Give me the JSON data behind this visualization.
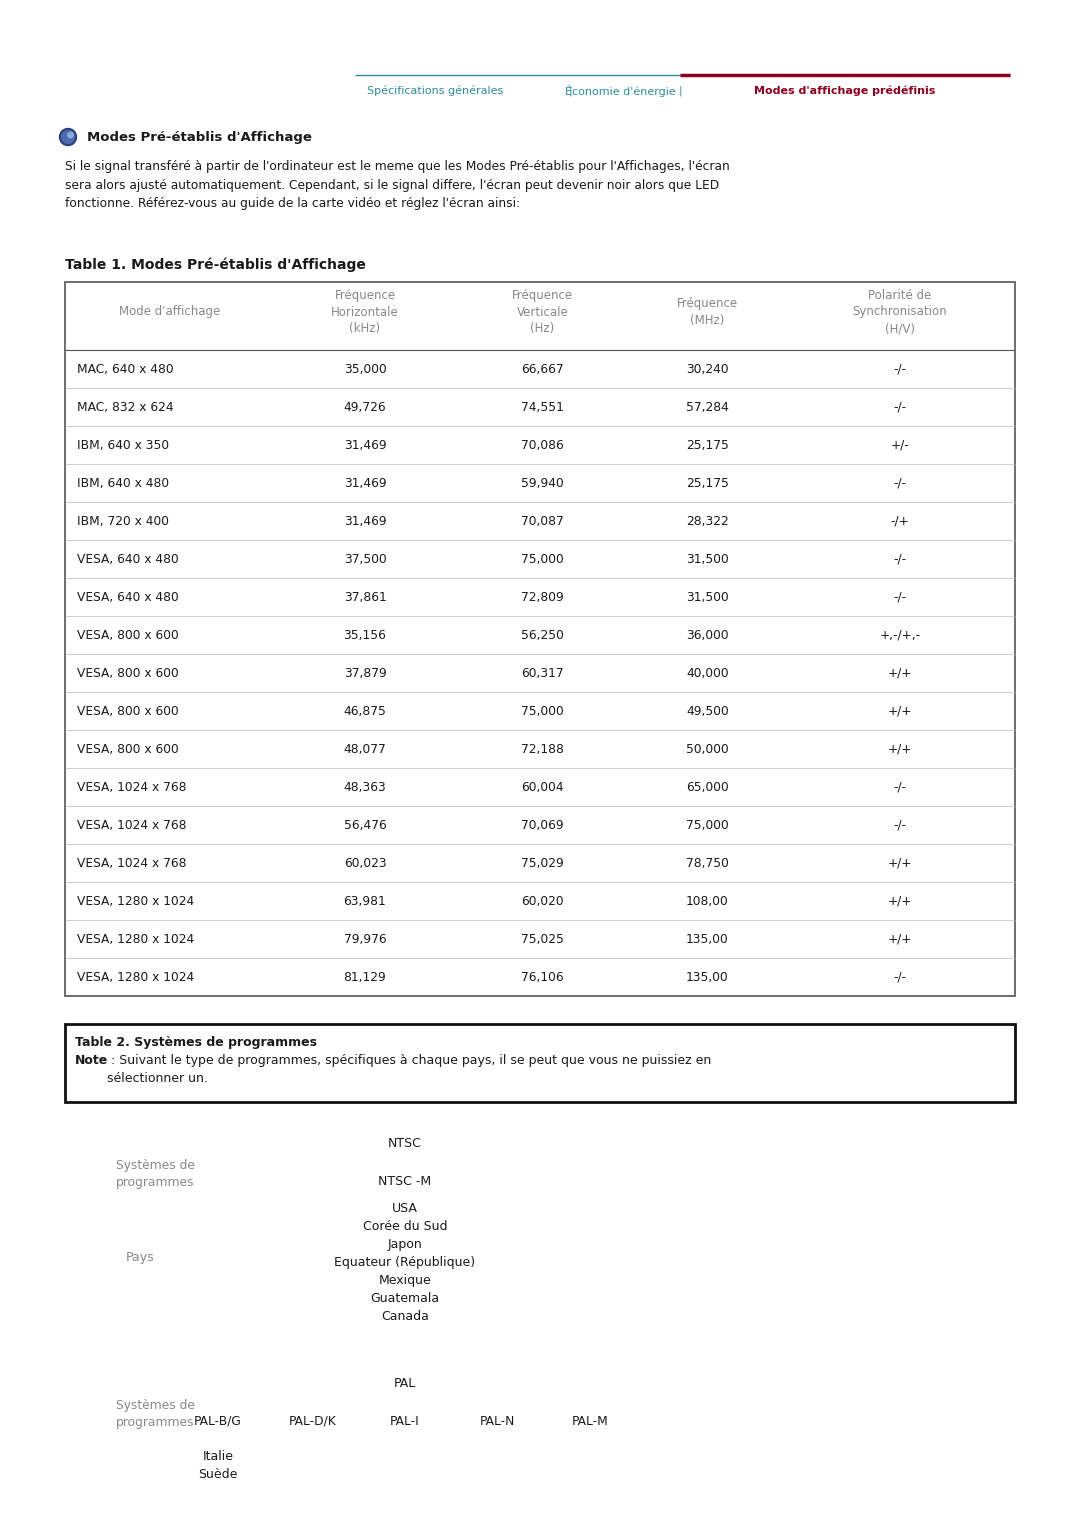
{
  "nav_items": [
    "Spécifications générales",
    "Économie d'énergie",
    "Modes d'affichage prédéfinis"
  ],
  "nav_color": "#2E8B9A",
  "nav_active_color": "#8B0020",
  "icon_color": "#3A5A9A",
  "section_title": "Modes Pré-établis d'Affichage",
  "body_text": "Si le signal transféré à partir de l'ordinateur est le meme que les Modes Pré-établis pour l'Affichages, l'écran\nsera alors ajusté automatiquement. Cependant, si le signal differe, l'écran peut devenir noir alors que LED\nfonctionne. Référez-vous au guide de la carte vidéo et réglez l'écran ainsi:",
  "table1_title": "Table 1. Modes Pré-établis d'Affichage",
  "table1_headers": [
    "Mode d'affichage",
    "Fréquence\nHorizontale\n(kHz)",
    "Fréquence\nVerticale\n(Hz)",
    "Fréquence\n(MHz)",
    "Polarité de\nSynchronisation\n(H/V)"
  ],
  "table1_rows": [
    [
      "MAC, 640 x 480",
      "35,000",
      "66,667",
      "30,240",
      "-/-"
    ],
    [
      "MAC, 832 x 624",
      "49,726",
      "74,551",
      "57,284",
      "-/-"
    ],
    [
      "IBM, 640 x 350",
      "31,469",
      "70,086",
      "25,175",
      "+/-"
    ],
    [
      "IBM, 640 x 480",
      "31,469",
      "59,940",
      "25,175",
      "-/-"
    ],
    [
      "IBM, 720 x 400",
      "31,469",
      "70,087",
      "28,322",
      "-/+"
    ],
    [
      "VESA, 640 x 480",
      "37,500",
      "75,000",
      "31,500",
      "-/-"
    ],
    [
      "VESA, 640 x 480",
      "37,861",
      "72,809",
      "31,500",
      "-/-"
    ],
    [
      "VESA, 800 x 600",
      "35,156",
      "56,250",
      "36,000",
      "+,-/+,-"
    ],
    [
      "VESA, 800 x 600",
      "37,879",
      "60,317",
      "40,000",
      "+/+"
    ],
    [
      "VESA, 800 x 600",
      "46,875",
      "75,000",
      "49,500",
      "+/+"
    ],
    [
      "VESA, 800 x 600",
      "48,077",
      "72,188",
      "50,000",
      "+/+"
    ],
    [
      "VESA, 1024 x 768",
      "48,363",
      "60,004",
      "65,000",
      "-/-"
    ],
    [
      "VESA, 1024 x 768",
      "56,476",
      "70,069",
      "75,000",
      "-/-"
    ],
    [
      "VESA, 1024 x 768",
      "60,023",
      "75,029",
      "78,750",
      "+/+"
    ],
    [
      "VESA, 1280 x 1024",
      "63,981",
      "60,020",
      "108,00",
      "+/+"
    ],
    [
      "VESA, 1280 x 1024",
      "79,976",
      "75,025",
      "135,00",
      "+/+"
    ],
    [
      "VESA, 1280 x 1024",
      "81,129",
      "76,106",
      "135,00",
      "-/-"
    ]
  ],
  "table2_title": "Table 2. Systèmes de programmes",
  "table2_note_bold": "Note",
  "table2_note_rest": " : Suivant le type de programmes, spécifiques à chaque pays, il se peut que vous ne puissiez en\nsélectionner un.",
  "ntsc_label": "NTSC",
  "ntsc_sub": "NTSC -M",
  "ntsc_countries": "USA\nCorée du Sud\nJapon\nEquateur (République)\nMexique\nGuatemala\nCanada",
  "pal_label": "PAL",
  "pal_sub_labels": [
    "PAL-B/G",
    "PAL-D/K",
    "PAL-I",
    "PAL-N",
    "PAL-M"
  ],
  "pal_countries": "Italie\nSuède",
  "sys_label": "Systèmes de\nprogrammes",
  "pays_label": "Pays",
  "text_color": "#1a1a1a",
  "header_color": "#888888",
  "table_border_color": "#555555",
  "bg_color": "#ffffff"
}
